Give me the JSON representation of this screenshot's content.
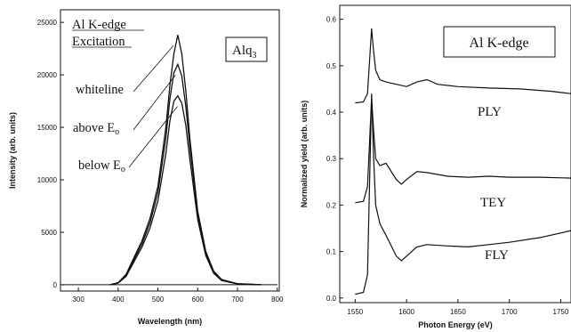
{
  "charts": {
    "left": {
      "x_label": "Wavelength (nm)",
      "y_label": "Intensity (arb. units)",
      "x_ticks": [
        "300",
        "400",
        "500",
        "600",
        "700",
        "800"
      ],
      "y_ticks": [
        "0",
        "5000",
        "10000",
        "15000",
        "20000",
        "25000"
      ],
      "legend_title_1": "Al K-edge",
      "legend_title_2": "Excitation",
      "curve_labels": [
        "whiteline",
        "above E",
        "below E"
      ],
      "curve_label_subscript": "o",
      "compound_label_main": "Alq",
      "compound_label_sub": "3"
    },
    "right": {
      "x_label": "Photon Energy (eV)",
      "y_label": "Normalized yield (arb. units)",
      "x_ticks": [
        "1550",
        "1600",
        "1650",
        "1700",
        "1750"
      ],
      "y_ticks": [
        "0.0",
        "0.1",
        "0.2",
        "0.3",
        "0.4",
        "0.5",
        "0.6"
      ],
      "edge_label": "Al K-edge",
      "curve_labels": [
        "PLY",
        "TEY",
        "FLY"
      ]
    }
  },
  "chart_data": [
    {
      "type": "line",
      "xlabel": "Wavelength (nm)",
      "ylabel": "Intensity (arb. units)",
      "xlim": [
        255,
        805
      ],
      "ylim": [
        -600,
        26200
      ],
      "series": [
        {
          "name": "whiteline",
          "x": [
            380,
            400,
            420,
            440,
            460,
            480,
            500,
            520,
            530,
            540,
            550,
            560,
            570,
            580,
            600,
            620,
            640,
            660,
            700,
            760
          ],
          "y": [
            0,
            200,
            1000,
            2600,
            4200,
            6300,
            9400,
            15000,
            19000,
            22000,
            23800,
            22000,
            18500,
            14000,
            7000,
            3200,
            1300,
            500,
            100,
            0
          ]
        },
        {
          "name": "above Eo",
          "x": [
            380,
            400,
            420,
            440,
            460,
            480,
            500,
            520,
            530,
            540,
            550,
            560,
            570,
            580,
            600,
            620,
            640,
            660,
            700,
            760
          ],
          "y": [
            0,
            180,
            900,
            2400,
            3900,
            5900,
            8800,
            14000,
            17700,
            20200,
            21000,
            19900,
            17000,
            13200,
            6700,
            3000,
            1200,
            450,
            90,
            0
          ]
        },
        {
          "name": "below Eo",
          "x": [
            380,
            400,
            420,
            440,
            460,
            480,
            500,
            520,
            530,
            540,
            550,
            560,
            570,
            580,
            600,
            620,
            640,
            660,
            700,
            760
          ],
          "y": [
            0,
            160,
            800,
            2200,
            3600,
            5400,
            8000,
            12500,
            15600,
            17500,
            18000,
            17300,
            15200,
            12000,
            6200,
            2800,
            1100,
            400,
            80,
            0
          ]
        }
      ]
    },
    {
      "type": "line",
      "xlabel": "Photon Energy (eV)",
      "ylabel": "Normalized yield (arb. units)",
      "xlim": [
        1535,
        1760
      ],
      "ylim": [
        -0.01,
        0.63
      ],
      "series": [
        {
          "name": "PLY",
          "x": [
            1550,
            1558,
            1562,
            1566,
            1568,
            1570,
            1574,
            1580,
            1590,
            1600,
            1610,
            1620,
            1630,
            1650,
            1680,
            1710,
            1740,
            1760
          ],
          "y": [
            0.42,
            0.422,
            0.44,
            0.58,
            0.53,
            0.49,
            0.47,
            0.465,
            0.46,
            0.455,
            0.465,
            0.47,
            0.46,
            0.455,
            0.452,
            0.45,
            0.445,
            0.44
          ]
        },
        {
          "name": "TEY",
          "x": [
            1550,
            1558,
            1562,
            1566,
            1568,
            1570,
            1574,
            1580,
            1590,
            1595,
            1600,
            1610,
            1620,
            1640,
            1660,
            1680,
            1700,
            1730,
            1760
          ],
          "y": [
            0.205,
            0.208,
            0.24,
            0.43,
            0.36,
            0.3,
            0.285,
            0.29,
            0.255,
            0.245,
            0.255,
            0.272,
            0.27,
            0.262,
            0.26,
            0.262,
            0.26,
            0.26,
            0.258
          ]
        },
        {
          "name": "FLY",
          "x": [
            1550,
            1558,
            1562,
            1566,
            1568,
            1570,
            1574,
            1580,
            1590,
            1595,
            1600,
            1610,
            1620,
            1640,
            1660,
            1680,
            1700,
            1730,
            1760
          ],
          "y": [
            0.008,
            0.012,
            0.05,
            0.44,
            0.3,
            0.2,
            0.16,
            0.135,
            0.09,
            0.08,
            0.09,
            0.11,
            0.115,
            0.112,
            0.11,
            0.115,
            0.12,
            0.13,
            0.145
          ]
        }
      ]
    }
  ]
}
